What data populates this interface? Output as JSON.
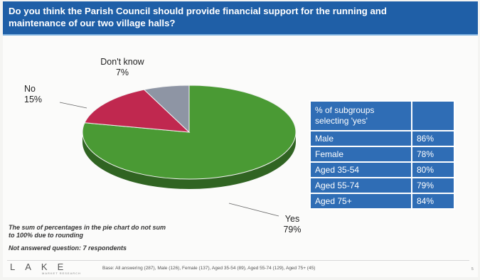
{
  "title": "Do you think the Parish Council should provide financial support for the running and maintenance of our two village halls?",
  "chart_data": {
    "type": "pie",
    "slices": [
      {
        "label": "Yes",
        "value": 79,
        "display": "79%",
        "color": "#4a9a34"
      },
      {
        "label": "No",
        "value": 15,
        "display": "15%",
        "color": "#c0284f"
      },
      {
        "label": "Don't know",
        "value": 7,
        "display": "7%",
        "color": "#8e95a4"
      }
    ]
  },
  "subgroups": {
    "header": "% of subgroups selecting 'yes'",
    "rows": [
      {
        "label": "Male",
        "value": "86%"
      },
      {
        "label": "Female",
        "value": "78%"
      },
      {
        "label": "Aged 35-54",
        "value": "80%"
      },
      {
        "label": "Aged 55-74",
        "value": "79%"
      },
      {
        "label": "Aged 75+",
        "value": "84%"
      }
    ]
  },
  "notes": {
    "rounding": "The sum of percentages in the pie chart do not sum to 100% due to rounding",
    "not_answered": "Not answered question: 7 respondents"
  },
  "footer": {
    "logo": "LAKE",
    "logo_sub": "MARKET RESEARCH",
    "base": "Base:  All answering (287), Male (126), Female (137), Aged 35-54 (89), Aged 55-74 (129), Aged 75+ (45)",
    "page": "5"
  }
}
